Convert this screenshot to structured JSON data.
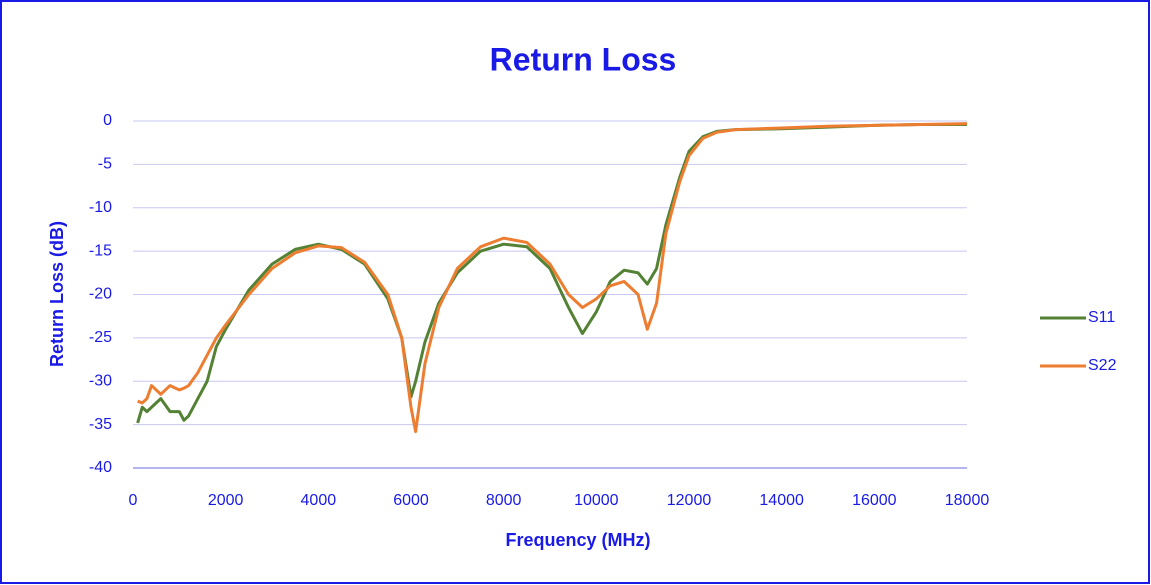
{
  "chart_data": {
    "type": "line",
    "title": "Return Loss",
    "x_label": "Frequency (MHz)",
    "y_label": "Return Loss (dB)",
    "x": [
      100,
      200,
      300,
      400,
      600,
      800,
      1000,
      1100,
      1200,
      1400,
      1600,
      1800,
      2000,
      2500,
      3000,
      3500,
      4000,
      4500,
      5000,
      5500,
      5800,
      6000,
      6100,
      6300,
      6600,
      7000,
      7500,
      8000,
      8500,
      9000,
      9400,
      9700,
      10000,
      10300,
      10600,
      10900,
      11100,
      11300,
      11500,
      11800,
      12000,
      12300,
      12600,
      13000,
      14000,
      15000,
      16000,
      17000,
      18000
    ],
    "series": [
      {
        "name": "S11",
        "color": "#548235",
        "values": [
          -34.8,
          -33,
          -33.5,
          -33,
          -32,
          -33.5,
          -33.5,
          -34.5,
          -34,
          -32,
          -30,
          -26,
          -24,
          -19.5,
          -16.5,
          -14.8,
          -14.2,
          -14.8,
          -16.5,
          -20.5,
          -25,
          -31.8,
          -30,
          -25.5,
          -21,
          -17.5,
          -15,
          -14.2,
          -14.5,
          -17,
          -21.5,
          -24.5,
          -22,
          -18.5,
          -17.2,
          -17.5,
          -18.8,
          -17,
          -12,
          -6.5,
          -3.5,
          -1.8,
          -1.2,
          -1,
          -0.9,
          -0.7,
          -0.5,
          -0.4,
          -0.4
        ]
      },
      {
        "name": "S22",
        "color": "#ed7d31",
        "values": [
          -32.3,
          -32.5,
          -32,
          -30.5,
          -31.5,
          -30.5,
          -31,
          -30.8,
          -30.5,
          -29,
          -27,
          -25,
          -23.5,
          -20,
          -17,
          -15.2,
          -14.4,
          -14.6,
          -16.3,
          -20,
          -25,
          -33,
          -35.8,
          -28,
          -21.5,
          -17,
          -14.5,
          -13.5,
          -14,
          -16.5,
          -20,
          -21.5,
          -20.5,
          -19,
          -18.5,
          -20,
          -24,
          -21,
          -13,
          -7,
          -4,
          -2,
          -1.3,
          -1,
          -0.8,
          -0.6,
          -0.5,
          -0.4,
          -0.3
        ]
      }
    ],
    "xlim": [
      0,
      18000
    ],
    "xticks": [
      0,
      2000,
      4000,
      6000,
      8000,
      10000,
      12000,
      14000,
      16000,
      18000
    ],
    "ylim": [
      -40,
      0
    ],
    "yticks": [
      0,
      -5,
      -10,
      -15,
      -20,
      -25,
      -30,
      -35,
      -40
    ],
    "grid": true,
    "legend": "right"
  }
}
